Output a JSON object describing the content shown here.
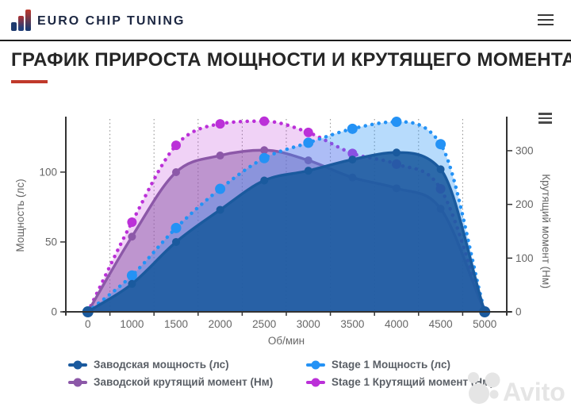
{
  "header": {
    "brand": "EURO CHIP TUNING",
    "brand_icon": "bar-chart-logo-icon",
    "menu_icon": "hamburger-menu-icon"
  },
  "title": {
    "text": "ГРАФИК ПРИРОСТА МОЩНОСТИ И КРУТЯЩЕГО МОМЕНТА",
    "accent_color": "#c0392b"
  },
  "chart_data": {
    "type": "area",
    "x": {
      "title": "Об/мин",
      "categories": [
        "0",
        "1000",
        "1500",
        "2000",
        "2500",
        "3000",
        "3500",
        "4000",
        "4500",
        "5000"
      ]
    },
    "y_left": {
      "title": "Мощность (лс)",
      "ticks": [
        0,
        50,
        100
      ],
      "max": 138
    },
    "y_right": {
      "title": "Крутящий момент (Нм)",
      "ticks": [
        0,
        100,
        200,
        300
      ],
      "max": 359
    },
    "grid": "vertical-dotted",
    "legend_position": "bottom",
    "menu_icon": "chart-menu-icon",
    "series": [
      {
        "name": "Заводская мощность (лс)",
        "axis": "left",
        "style": "solid",
        "color": "#1a5a9e",
        "fill_alpha": 0.88,
        "marker_radius": 5,
        "values": [
          0,
          20,
          50,
          73,
          94,
          101,
          109,
          114,
          102,
          0
        ]
      },
      {
        "name": "Stage 1 Мощность (лс)",
        "axis": "left",
        "style": "dotted",
        "color": "#2492f5",
        "fill_alpha": 0.33,
        "marker_radius": 6.5,
        "values": [
          0,
          26,
          60,
          88,
          110,
          121,
          131,
          136,
          120,
          0
        ]
      },
      {
        "name": "Заводской крутящий момент (Нм)",
        "axis": "right",
        "style": "solid",
        "color": "#8c58a8",
        "fill_alpha": 0.5,
        "marker_radius": 5,
        "values": [
          0,
          140,
          260,
          291,
          301,
          282,
          250,
          230,
          192,
          0
        ]
      },
      {
        "name": "Stage 1 Крутящий момент (Нм)",
        "axis": "right",
        "style": "dotted",
        "color": "#bb30d8",
        "fill_alpha": 0.22,
        "marker_radius": 6,
        "values": [
          0,
          167,
          310,
          350,
          355,
          334,
          295,
          275,
          229,
          0
        ]
      }
    ],
    "draw_order": [
      3,
      2,
      1,
      0
    ]
  },
  "watermark": {
    "text": "Avito"
  }
}
